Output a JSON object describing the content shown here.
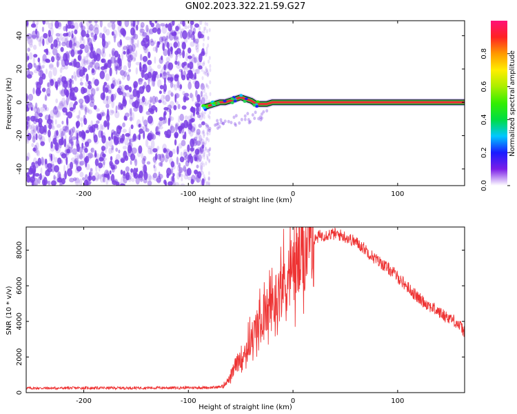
{
  "title": "GN02.2023.322.21.59.G27",
  "colors": {
    "snr_line": "#ee3333",
    "spectrogram_scatter": "#7b3fe4",
    "track_outline": "#111111",
    "track_fill": "#e63333"
  },
  "chart_data": [
    {
      "type": "heatmap",
      "xlabel": "Height of straight line (km)",
      "ylabel": "Frequency (Hz)",
      "xlim": [
        -255,
        164
      ],
      "ylim": [
        -50,
        49
      ],
      "xticks": [
        -200,
        -100,
        0,
        100
      ],
      "yticks": [
        -40,
        -20,
        0,
        20,
        40
      ],
      "grid": false,
      "noise_region_x": [
        -255,
        -83
      ],
      "track": {
        "x": [
          -85,
          -80,
          -75,
          -70,
          -65,
          -60,
          -55,
          -50,
          -45,
          -40,
          -35,
          -30,
          -25,
          -20,
          0,
          50,
          100,
          164
        ],
        "y": [
          -3,
          -2,
          -1,
          0,
          0,
          1,
          2,
          3,
          2,
          1,
          -1,
          -1,
          -1,
          0,
          0,
          0,
          0,
          0
        ]
      },
      "colorbar": {
        "label": "Normalized spectral amplitude",
        "range": [
          0,
          1
        ],
        "ticks": [
          "0.0",
          "0.2",
          "0.4",
          "0.6",
          "0.8"
        ],
        "colors": [
          "#ffffff",
          "#7b1fe8",
          "#1a1aff",
          "#00c8ff",
          "#00dd44",
          "#33ee00",
          "#aaee00",
          "#ffee00",
          "#ff9900",
          "#ff2222",
          "#ff1177"
        ]
      }
    },
    {
      "type": "line",
      "xlabel": "Height of straight line (km)",
      "ylabel": "SNR (10 * v/v)",
      "xlim": [
        -255,
        164
      ],
      "ylim": [
        0,
        9300
      ],
      "xticks": [
        -200,
        -100,
        0,
        100
      ],
      "yticks": [
        0,
        2000,
        4000,
        6000,
        8000
      ],
      "grid": false,
      "series": [
        {
          "x": [
            -255,
            -230,
            -200,
            -170,
            -140,
            -110,
            -90,
            -75,
            -68,
            -60,
            -55,
            -50,
            -45,
            -40,
            -35,
            -30,
            -25,
            -20,
            -15,
            -10,
            -5,
            0,
            5,
            10,
            15,
            20,
            25,
            30,
            35,
            40,
            45,
            50,
            55,
            60,
            65,
            70,
            75,
            80,
            85,
            90,
            95,
            100,
            105,
            110,
            115,
            120,
            125,
            130,
            135,
            140,
            145,
            150,
            155,
            160,
            164
          ],
          "y": [
            250,
            250,
            260,
            260,
            270,
            270,
            280,
            290,
            350,
            800,
            1500,
            2000,
            2400,
            3000,
            3600,
            4000,
            4500,
            5000,
            5400,
            6100,
            6500,
            6900,
            7300,
            7700,
            8200,
            8500,
            8800,
            8850,
            8900,
            8900,
            8850,
            8750,
            8600,
            8450,
            8250,
            8000,
            7700,
            7450,
            7250,
            7000,
            6800,
            6500,
            6200,
            5900,
            5600,
            5300,
            5100,
            4900,
            4700,
            4500,
            4300,
            4200,
            4000,
            3700,
            3400
          ]
        }
      ]
    }
  ]
}
